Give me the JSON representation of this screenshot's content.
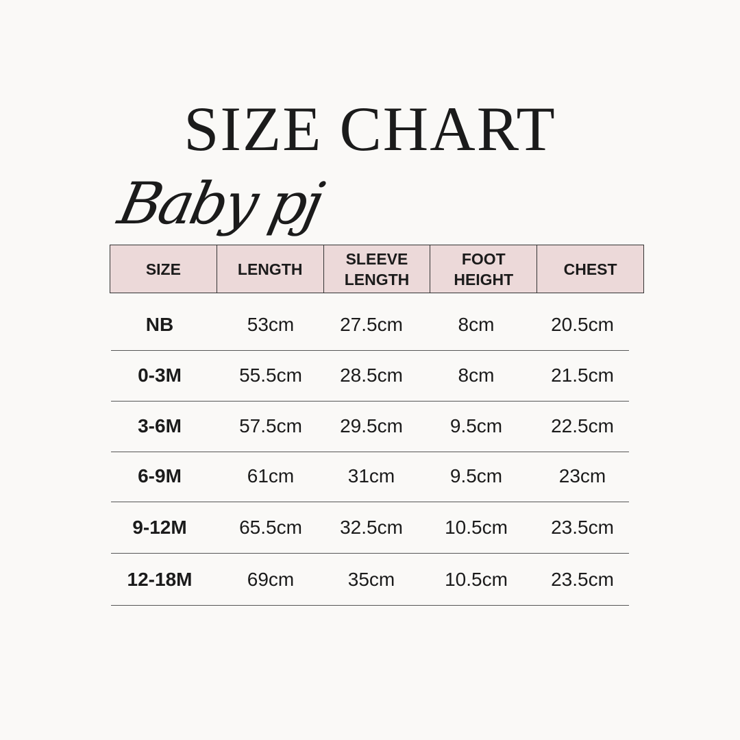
{
  "title": "SIZE CHART",
  "subtitle": "Baby pj",
  "colors": {
    "header_bg": "#ecd9d9",
    "background": "#faf9f7"
  },
  "headers": [
    "SIZE",
    "LENGTH",
    "SLEEVE LENGTH",
    "FOOT HEIGHT",
    "CHEST"
  ],
  "rows": [
    [
      "NB",
      "53cm",
      "27.5cm",
      "8cm",
      "20.5cm"
    ],
    [
      "0-3M",
      "55.5cm",
      "28.5cm",
      "8cm",
      "21.5cm"
    ],
    [
      "3-6M",
      "57.5cm",
      "29.5cm",
      "9.5cm",
      "22.5cm"
    ],
    [
      "6-9M",
      "61cm",
      "31cm",
      "9.5cm",
      "23cm"
    ],
    [
      "9-12M",
      "65.5cm",
      "32.5cm",
      "10.5cm",
      "23.5cm"
    ],
    [
      "12-18M",
      "69cm",
      "35cm",
      "10.5cm",
      "23.5cm"
    ]
  ]
}
